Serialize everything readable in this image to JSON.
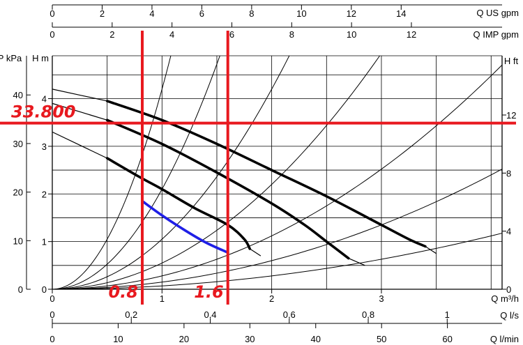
{
  "chart_data": {
    "type": "line",
    "title": "",
    "axes": {
      "q_m3h": {
        "label": "Q m³/h",
        "range": [
          0,
          4.1
        ],
        "ticks": [
          "0",
          "1",
          "2",
          "3"
        ]
      },
      "q_us_gpm": {
        "label": "Q US gpm",
        "range": [
          0,
          18.05
        ],
        "ticks": [
          "0",
          "2",
          "4",
          "6",
          "8",
          "10",
          "12",
          "14"
        ]
      },
      "q_imp_gpm": {
        "label": "Q IMP gpm",
        "range": [
          0,
          15.03
        ],
        "ticks": [
          "0",
          "2",
          "4",
          "6",
          "8",
          "10",
          "12"
        ]
      },
      "q_ls": {
        "label": "Q l/s",
        "range": [
          0,
          1.139
        ],
        "ticks": [
          "0",
          "0,2",
          "0,4",
          "0,6",
          "0,8",
          "1"
        ]
      },
      "q_lmin": {
        "label": "Q l/min",
        "range": [
          0,
          68.3
        ],
        "ticks": [
          "0",
          "10",
          "20",
          "30",
          "40",
          "50",
          "60"
        ]
      },
      "h_m": {
        "label": "H m",
        "range": [
          0,
          4.9
        ],
        "ticks": [
          "0",
          "1",
          "2",
          "3",
          "4"
        ]
      },
      "p_kpa": {
        "label": "P kPa",
        "range": [
          0,
          48.07
        ],
        "ticks": [
          "0",
          "10",
          "20",
          "30",
          "40"
        ]
      },
      "h_ft": {
        "label": "H ft",
        "range": [
          0,
          16.08
        ],
        "ticks": [
          "0",
          "4",
          "8",
          "12"
        ]
      }
    },
    "grid": true,
    "series": [
      {
        "points": [
          [
            0,
            4.2
          ],
          [
            0.5,
            3.95
          ],
          [
            1,
            3.55
          ],
          [
            1.5,
            3.05
          ],
          [
            2,
            2.5
          ],
          [
            2.5,
            1.95
          ],
          [
            3,
            1.35
          ],
          [
            3.25,
            1.05
          ],
          [
            3.4,
            0.9
          ],
          [
            3.5,
            0.75
          ]
        ]
      },
      {
        "points": [
          [
            0,
            3.9
          ],
          [
            0.5,
            3.55
          ],
          [
            1,
            3.05
          ],
          [
            1.5,
            2.45
          ],
          [
            2,
            1.8
          ],
          [
            2.3,
            1.35
          ],
          [
            2.5,
            1.0
          ],
          [
            2.7,
            0.65
          ],
          [
            2.85,
            0.5
          ]
        ]
      },
      {
        "points": [
          [
            0,
            3.3
          ],
          [
            0.5,
            2.75
          ],
          [
            0.8,
            2.35
          ],
          [
            1,
            2.1
          ],
          [
            1.3,
            1.7
          ],
          [
            1.6,
            1.35
          ],
          [
            1.75,
            1.05
          ],
          [
            1.8,
            0.85
          ],
          [
            1.9,
            0.7
          ]
        ]
      },
      {
        "color": "#1f1fe6",
        "points": [
          [
            0.82,
            1.85
          ],
          [
            1.0,
            1.55
          ],
          [
            1.2,
            1.25
          ],
          [
            1.4,
            0.98
          ],
          [
            1.6,
            0.77
          ]
        ]
      }
    ],
    "system_curves_k": [
      4.2,
      2.1,
      1.05,
      0.55,
      0.28,
      0.15,
      0.07
    ],
    "annotations": [
      {
        "text": "33.800",
        "kpa": 34.2,
        "type": "hline"
      },
      {
        "text": "0.8",
        "q_m3h": 0.82,
        "type": "vline"
      },
      {
        "text": "1.6",
        "q_m3h": 1.6,
        "type": "vline"
      }
    ],
    "annotation_color": "#e8191f"
  }
}
